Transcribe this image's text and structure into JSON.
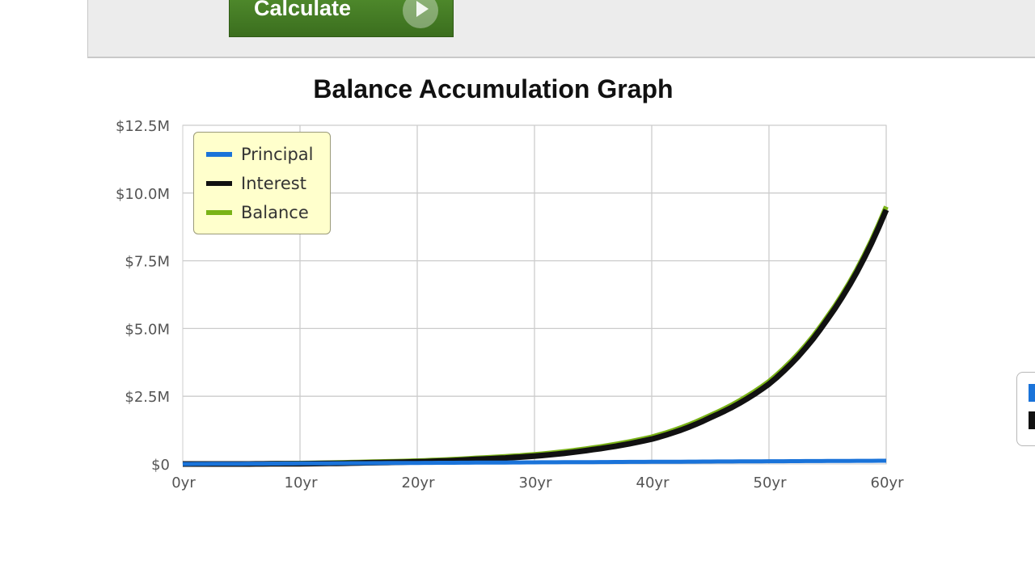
{
  "form": {
    "calculate_label": "Calculate"
  },
  "chart_data": {
    "type": "line",
    "title": "Balance Accumulation Graph",
    "x": [
      0,
      5,
      10,
      15,
      20,
      25,
      30,
      35,
      40,
      45,
      50,
      55,
      60
    ],
    "x_tick_labels": [
      "0yr",
      "10yr",
      "20yr",
      "30yr",
      "40yr",
      "50yr",
      "60yr"
    ],
    "x_ticks": [
      0,
      10,
      20,
      30,
      40,
      50,
      60
    ],
    "xlim": [
      0,
      60
    ],
    "y_tick_labels": [
      "$0",
      "$2.5M",
      "$5.0M",
      "$7.5M",
      "$10.0M",
      "$12.5M"
    ],
    "y_ticks": [
      0,
      2.5,
      5.0,
      7.5,
      10.0,
      12.5
    ],
    "ylim": [
      0,
      12.5
    ],
    "y_unit": "$M",
    "grid": true,
    "legend_position": "top-left",
    "series": [
      {
        "name": "Principal",
        "color": "#1a73d9",
        "values": [
          0.0,
          0.01,
          0.02,
          0.03,
          0.04,
          0.05,
          0.06,
          0.07,
          0.08,
          0.09,
          0.1,
          0.11,
          0.12
        ]
      },
      {
        "name": "Interest",
        "color": "#111111",
        "values": [
          0.0,
          0.0,
          0.01,
          0.04,
          0.08,
          0.17,
          0.29,
          0.53,
          0.92,
          1.71,
          2.95,
          5.35,
          9.38
        ]
      },
      {
        "name": "Balance",
        "color": "#7ab317",
        "values": [
          0.0,
          0.01,
          0.03,
          0.07,
          0.12,
          0.22,
          0.35,
          0.6,
          1.0,
          1.8,
          3.05,
          5.45,
          9.5
        ]
      }
    ]
  },
  "side_widget": {
    "colors": [
      "#1a73d9",
      "#111111"
    ]
  }
}
